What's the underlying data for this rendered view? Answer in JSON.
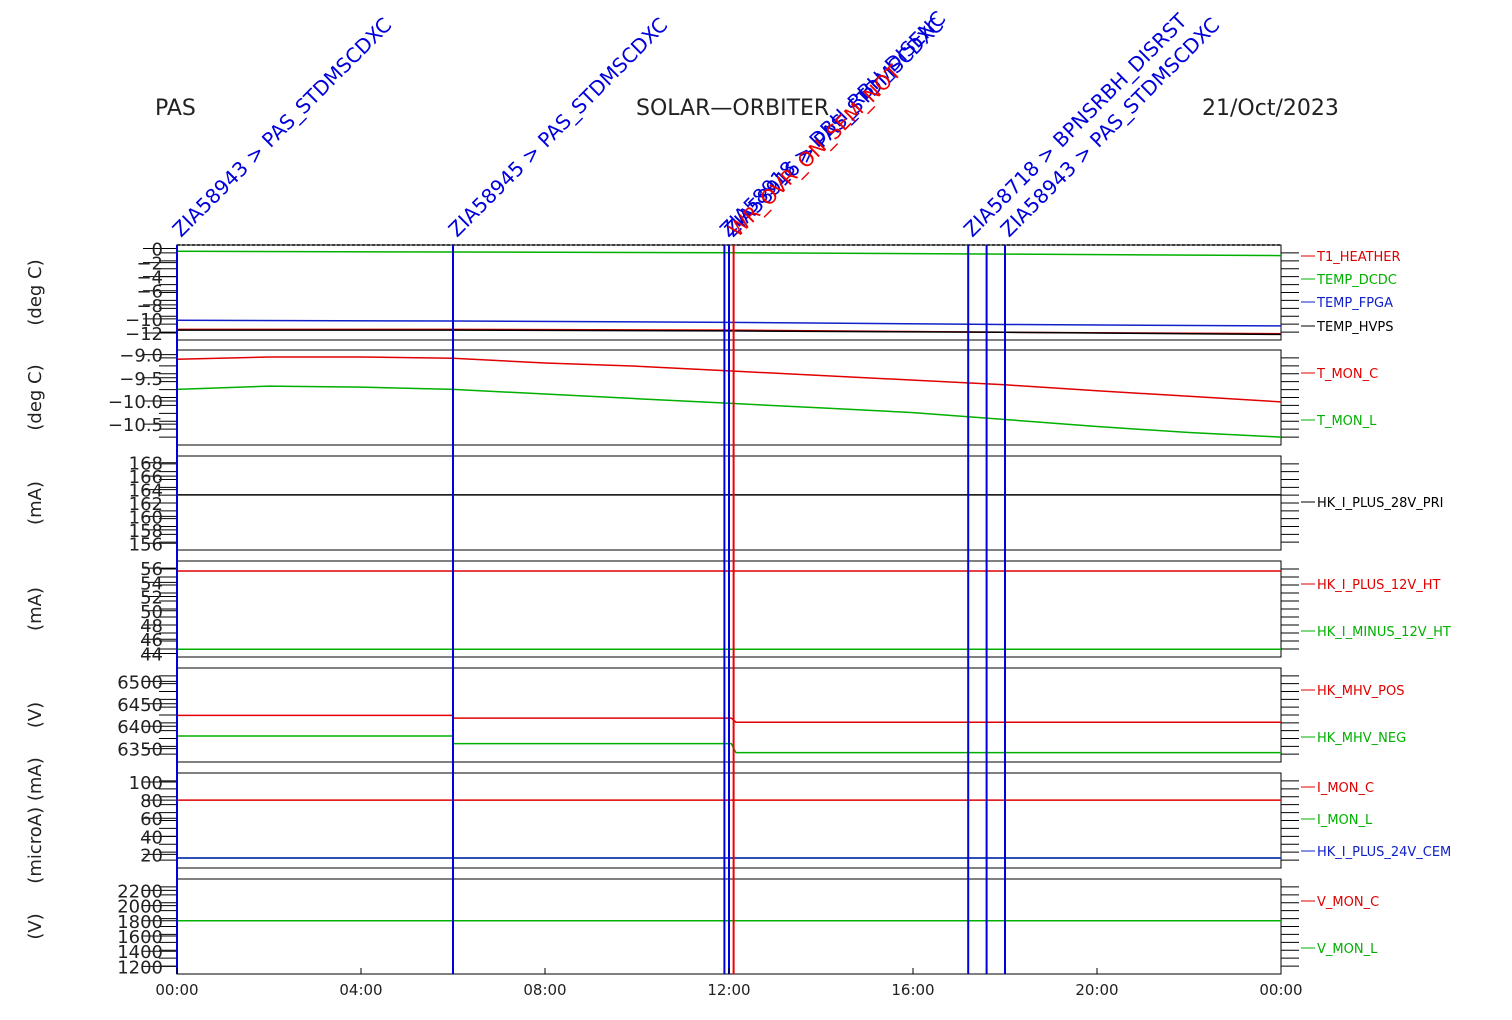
{
  "header": {
    "left": "PAS",
    "center": "SOLAR—ORBITER",
    "right": "21/Oct/2023"
  },
  "colors": {
    "red": "#e00000",
    "green": "#00b000",
    "blue": "#1020c8",
    "black": "#000000",
    "event_blue": "#0000dd",
    "event_red": "#ee0000"
  },
  "chart_data": {
    "type": "line",
    "x_axis": {
      "range_hours": [
        0,
        24
      ],
      "ticks": [
        0,
        4,
        8,
        12,
        16,
        20,
        24
      ],
      "tick_labels": [
        "00:00",
        "04:00",
        "08:00",
        "12:00",
        "16:00",
        "20:00",
        "00:00"
      ]
    },
    "panels": [
      {
        "ylabel": "(deg C)",
        "ticks": [
          -12,
          -10,
          -8,
          -6,
          -4,
          -2,
          0
        ],
        "tick_labels": [
          "−12",
          "−10",
          "−8",
          "−6",
          "−4",
          "−2",
          "0"
        ],
        "ylim": [
          -13,
          0.5
        ],
        "series": [
          {
            "name": "T1_HEATHER",
            "color": "red",
            "x": [
              0,
              6,
              12,
              18,
              24
            ],
            "y": [
              -11.5,
              -11.5,
              -11.6,
              -11.9,
              -12.1
            ]
          },
          {
            "name": "TEMP_DCDC",
            "color": "green",
            "x": [
              0,
              6,
              12,
              18,
              24
            ],
            "y": [
              -0.4,
              -0.5,
              -0.6,
              -0.8,
              -1.0
            ]
          },
          {
            "name": "TEMP_FPGA",
            "color": "blue",
            "x": [
              0,
              6,
              12,
              18,
              24
            ],
            "y": [
              -10.2,
              -10.3,
              -10.5,
              -10.8,
              -11.0
            ]
          },
          {
            "name": "TEMP_HVPS",
            "color": "black",
            "x": [
              0,
              6,
              12,
              18,
              24
            ],
            "y": [
              -11.6,
              -11.6,
              -11.7,
              -11.9,
              -12.2
            ]
          }
        ]
      },
      {
        "ylabel": "(deg C)",
        "ticks": [
          -10.5,
          -10.0,
          -9.5,
          -9.0
        ],
        "tick_labels": [
          "−10.5",
          "−10.0",
          "−9.5",
          "−9.0"
        ],
        "ylim": [
          -10.95,
          -8.9
        ],
        "series": [
          {
            "name": "T_MON_C",
            "color": "red",
            "x": [
              0,
              2,
              4,
              6,
              8,
              10,
              12,
              14,
              16,
              18,
              20,
              22,
              24
            ],
            "y": [
              -9.1,
              -9.05,
              -9.05,
              -9.08,
              -9.18,
              -9.25,
              -9.35,
              -9.45,
              -9.55,
              -9.65,
              -9.78,
              -9.9,
              -10.02
            ]
          },
          {
            "name": "T_MON_L",
            "color": "green",
            "x": [
              0,
              2,
              4,
              6,
              8,
              10,
              12,
              14,
              16,
              18,
              20,
              22,
              24
            ],
            "y": [
              -9.75,
              -9.68,
              -9.7,
              -9.75,
              -9.85,
              -9.95,
              -10.05,
              -10.15,
              -10.25,
              -10.4,
              -10.55,
              -10.68,
              -10.78
            ]
          }
        ]
      },
      {
        "ylabel": "(mA)",
        "ticks": [
          156,
          158,
          160,
          162,
          164,
          166,
          168
        ],
        "tick_labels": [
          "156",
          "158",
          "160",
          "162",
          "164",
          "166",
          "168"
        ],
        "ylim": [
          155,
          169
        ],
        "series": [
          {
            "name": "HK_I_PLUS_28V_PRI",
            "color": "black",
            "x": [
              0,
              12,
              24
            ],
            "y": [
              163.2,
              163.2,
              163.2
            ]
          }
        ]
      },
      {
        "ylabel": "(mA)",
        "ticks": [
          44,
          46,
          48,
          50,
          52,
          54,
          56
        ],
        "tick_labels": [
          "44",
          "46",
          "48",
          "50",
          "52",
          "54",
          "56"
        ],
        "ylim": [
          43.5,
          57
        ],
        "series": [
          {
            "name": "HK_I_PLUS_12V_HT",
            "color": "red",
            "x": [
              0,
              24
            ],
            "y": [
              55.6,
              55.6
            ]
          },
          {
            "name": "HK_I_MINUS_12V_HT",
            "color": "green",
            "x": [
              0,
              24
            ],
            "y": [
              44.6,
              44.6
            ]
          }
        ]
      },
      {
        "ylabel": "(V)",
        "ticks": [
          6350,
          6400,
          6450,
          6500
        ],
        "tick_labels": [
          "6350",
          "6400",
          "6450",
          "6500"
        ],
        "ylim": [
          6320,
          6530
        ],
        "series": [
          {
            "name": "HK_MHV_POS",
            "color": "red",
            "x": [
              0,
              6,
              6,
              12.05,
              12.15,
              24
            ],
            "y": [
              6424,
              6424,
              6418,
              6418,
              6409,
              6409
            ]
          },
          {
            "name": "HK_MHV_NEG",
            "color": "green",
            "x": [
              0,
              6,
              6,
              12.05,
              12.15,
              24
            ],
            "y": [
              6378,
              6378,
              6361,
              6361,
              6341,
              6341
            ]
          }
        ]
      },
      {
        "ylabel": "(microA) (mA)",
        "ticks": [
          20,
          40,
          60,
          80,
          100
        ],
        "tick_labels": [
          "20",
          "40",
          "60",
          "80",
          "100"
        ],
        "ylim": [
          5,
          110
        ],
        "series": [
          {
            "name": "I_MON_C",
            "color": "red",
            "x": [
              0,
              24
            ],
            "y": [
              80,
              80
            ]
          },
          {
            "name": "I_MON_L",
            "color": "green",
            "x": [
              0,
              24
            ],
            "y": [
              16,
              16
            ]
          },
          {
            "name": "HK_I_PLUS_24V_CEM",
            "color": "blue",
            "x": [
              0,
              24
            ],
            "y": [
              16,
              16
            ]
          }
        ]
      },
      {
        "ylabel": "(V)",
        "ticks": [
          1200,
          1400,
          1600,
          1800,
          2000,
          2200
        ],
        "tick_labels": [
          "1200",
          "1400",
          "1600",
          "1800",
          "2000",
          "2200"
        ],
        "ylim": [
          1100,
          2350
        ],
        "series": [
          {
            "name": "V_MON_C",
            "color": "red",
            "x": [
              0,
              24
            ],
            "y": [
              1800,
              1800
            ]
          },
          {
            "name": "V_MON_L",
            "color": "green",
            "x": [
              0,
              24
            ],
            "y": [
              1800,
              1800
            ]
          }
        ]
      }
    ],
    "events": [
      {
        "t": 0.0,
        "color": "event_blue",
        "label": "ZIA58943 > PAS_STDMSCDXC"
      },
      {
        "t": 6.0,
        "color": "event_blue",
        "label": "ZIA58945 > PAS_STDMSCDXC"
      },
      {
        "t": 11.9,
        "color": "event_blue",
        "label": "ZIA58918 > DBH_RBH_DISENC"
      },
      {
        "t": 12.0,
        "color": "event_blue",
        "label": "ZIA58916 > PAS_STDMSCDXC"
      },
      {
        "t": 12.1,
        "color": "event_red",
        "label": "WR_OVR_ON_SEM_NOT"
      },
      {
        "t": 17.2,
        "color": "event_blue",
        "label": "ZIA58718 > BPNSRBH_DISRST"
      },
      {
        "t": 17.6,
        "color": "event_blue",
        "label": ""
      },
      {
        "t": 18.0,
        "color": "event_blue",
        "label": "ZIA58943 > PAS_STDMSCDXC"
      }
    ]
  }
}
